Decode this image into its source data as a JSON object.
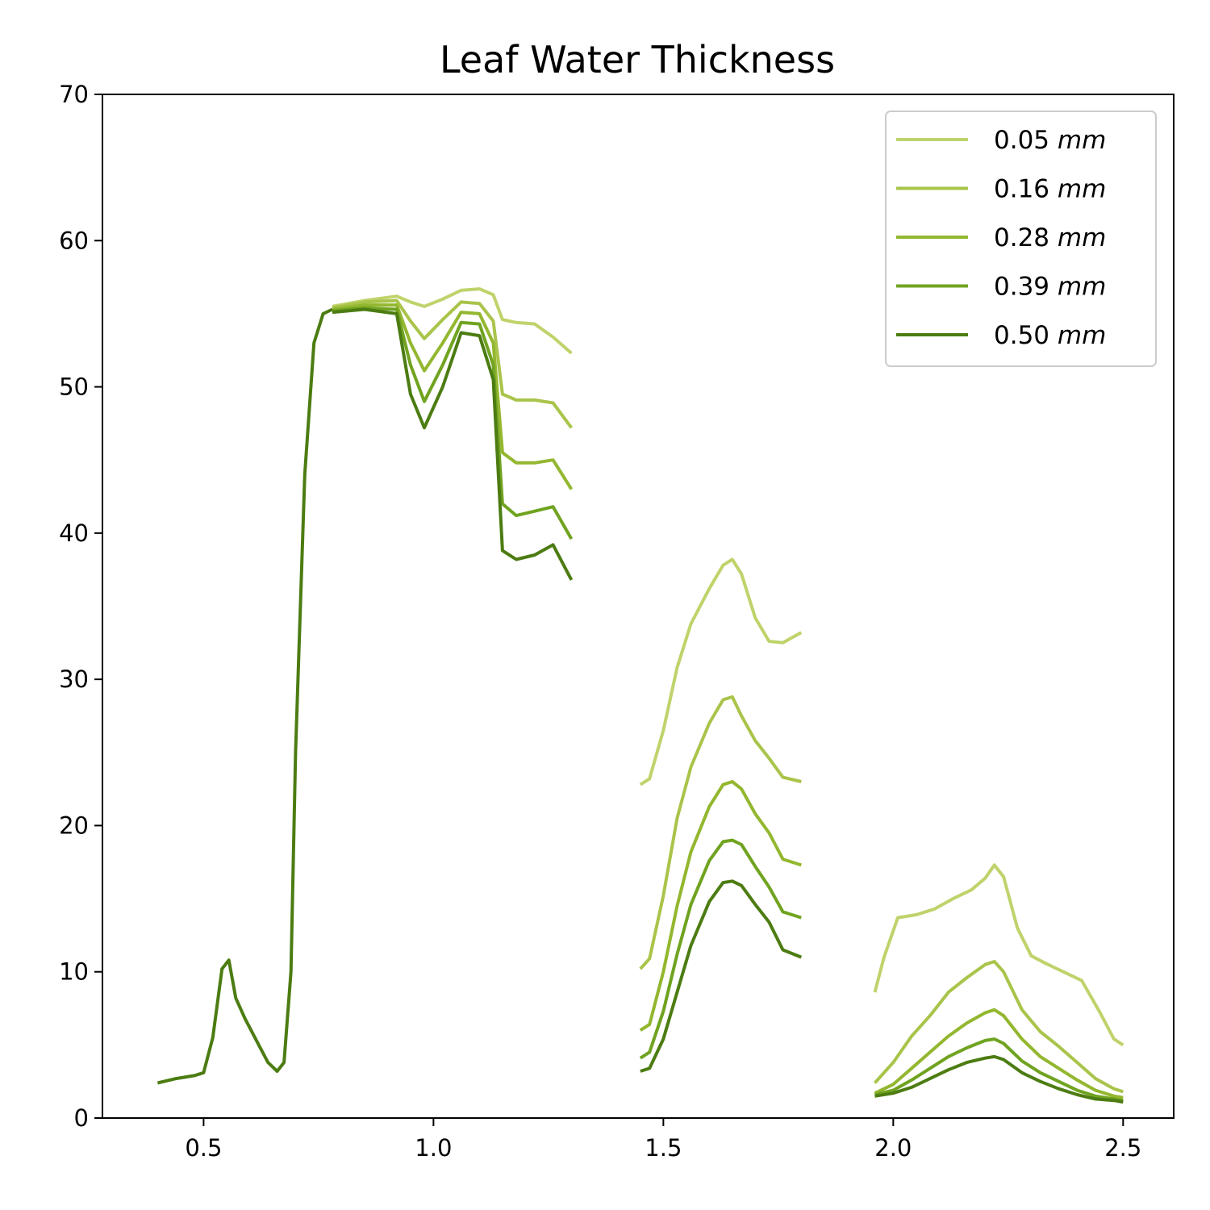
{
  "chart_data": {
    "type": "line",
    "title": "Leaf Water Thickness",
    "xlabel": "",
    "ylabel": "",
    "xlim": [
      0.28,
      2.61
    ],
    "ylim": [
      0,
      70
    ],
    "x_ticks": [
      0.5,
      1.0,
      1.5,
      2.0,
      2.5
    ],
    "x_tick_labels": [
      "0.5",
      "1.0",
      "1.5",
      "2.0",
      "2.5"
    ],
    "y_ticks": [
      0,
      10,
      20,
      30,
      40,
      50,
      60,
      70
    ],
    "y_tick_labels": [
      "0",
      "10",
      "20",
      "30",
      "40",
      "50",
      "60",
      "70"
    ],
    "grid": false,
    "legend_position": "top-right",
    "shared_segment": {
      "x": [
        0.4,
        0.44,
        0.48,
        0.5,
        0.52,
        0.54,
        0.555,
        0.57,
        0.59,
        0.62,
        0.64,
        0.66,
        0.675,
        0.69,
        0.7,
        0.72,
        0.74,
        0.76,
        0.78
      ],
      "y": [
        2.4,
        2.7,
        2.9,
        3.1,
        5.5,
        10.2,
        10.8,
        8.2,
        6.8,
        5.0,
        3.8,
        3.2,
        3.8,
        10,
        25,
        44,
        53,
        55,
        55.3
      ]
    },
    "series": [
      {
        "name": "0.05",
        "unit": "mm",
        "color": "#bfd36b",
        "segments": [
          {
            "x": [
              0.78,
              0.85,
              0.92,
              0.95,
              0.98,
              1.02,
              1.06,
              1.1,
              1.13,
              1.15,
              1.18,
              1.22,
              1.26,
              1.3
            ],
            "y": [
              55.5,
              55.9,
              56.2,
              55.8,
              55.5,
              56.0,
              56.6,
              56.7,
              56.3,
              54.6,
              54.4,
              54.3,
              53.4,
              52.3
            ]
          },
          {
            "x": [
              1.45,
              1.47,
              1.5,
              1.53,
              1.56,
              1.6,
              1.63,
              1.65,
              1.67,
              1.7,
              1.73,
              1.76,
              1.8
            ],
            "y": [
              22.8,
              23.2,
              26.5,
              30.8,
              33.8,
              36.2,
              37.8,
              38.2,
              37.2,
              34.2,
              32.6,
              32.5,
              33.2
            ]
          },
          {
            "x": [
              1.96,
              1.98,
              2.01,
              2.05,
              2.09,
              2.13,
              2.17,
              2.2,
              2.22,
              2.24,
              2.27,
              2.3,
              2.33,
              2.37,
              2.41,
              2.45,
              2.48,
              2.5
            ],
            "y": [
              8.6,
              11.0,
              13.7,
              13.9,
              14.3,
              15.0,
              15.6,
              16.4,
              17.3,
              16.5,
              13.0,
              11.1,
              10.6,
              10.0,
              9.4,
              7.2,
              5.4,
              5.0
            ]
          }
        ]
      },
      {
        "name": "0.16",
        "unit": "mm",
        "color": "#a9c44a",
        "segments": [
          {
            "x": [
              0.78,
              0.85,
              0.92,
              0.95,
              0.98,
              1.02,
              1.06,
              1.1,
              1.13,
              1.15,
              1.18,
              1.22,
              1.26,
              1.3
            ],
            "y": [
              55.4,
              55.8,
              55.9,
              54.5,
              53.3,
              54.6,
              55.8,
              55.7,
              54.5,
              49.5,
              49.1,
              49.1,
              48.9,
              47.2
            ]
          },
          {
            "x": [
              1.45,
              1.47,
              1.5,
              1.53,
              1.56,
              1.6,
              1.63,
              1.65,
              1.67,
              1.7,
              1.73,
              1.76,
              1.8
            ],
            "y": [
              10.2,
              10.9,
              15.2,
              20.5,
              24.0,
              27.0,
              28.6,
              28.8,
              27.5,
              25.8,
              24.6,
              23.3,
              23.0
            ]
          },
          {
            "x": [
              1.96,
              2.0,
              2.04,
              2.08,
              2.12,
              2.16,
              2.2,
              2.22,
              2.24,
              2.28,
              2.32,
              2.36,
              2.4,
              2.44,
              2.48,
              2.5
            ],
            "y": [
              2.4,
              3.8,
              5.6,
              7.0,
              8.6,
              9.6,
              10.5,
              10.7,
              10.0,
              7.4,
              5.9,
              4.9,
              3.8,
              2.7,
              2.0,
              1.8
            ]
          }
        ]
      },
      {
        "name": "0.28",
        "unit": "mm",
        "color": "#93b72f",
        "segments": [
          {
            "x": [
              0.78,
              0.85,
              0.92,
              0.95,
              0.98,
              1.02,
              1.06,
              1.1,
              1.13,
              1.15,
              1.18,
              1.22,
              1.26,
              1.3
            ],
            "y": [
              55.3,
              55.6,
              55.6,
              53.0,
              51.1,
              53.0,
              55.1,
              55.0,
              53.0,
              45.5,
              44.8,
              44.8,
              45.0,
              43.0
            ]
          },
          {
            "x": [
              1.45,
              1.47,
              1.5,
              1.53,
              1.56,
              1.6,
              1.63,
              1.65,
              1.67,
              1.7,
              1.73,
              1.76,
              1.8
            ],
            "y": [
              6.0,
              6.4,
              10.0,
              14.5,
              18.2,
              21.3,
              22.8,
              23.0,
              22.5,
              20.8,
              19.5,
              17.7,
              17.3
            ]
          },
          {
            "x": [
              1.96,
              2.0,
              2.04,
              2.08,
              2.12,
              2.16,
              2.2,
              2.22,
              2.24,
              2.28,
              2.32,
              2.36,
              2.4,
              2.44,
              2.48,
              2.5
            ],
            "y": [
              1.7,
              2.3,
              3.4,
              4.5,
              5.6,
              6.5,
              7.2,
              7.4,
              7.0,
              5.4,
              4.2,
              3.4,
              2.6,
              1.9,
              1.5,
              1.4
            ]
          }
        ]
      },
      {
        "name": "0.39",
        "unit": "mm",
        "color": "#70a320",
        "segments": [
          {
            "x": [
              0.78,
              0.85,
              0.92,
              0.95,
              0.98,
              1.02,
              1.06,
              1.1,
              1.13,
              1.15,
              1.18,
              1.22,
              1.26,
              1.3
            ],
            "y": [
              55.2,
              55.4,
              55.3,
              51.5,
              49.0,
              51.5,
              54.4,
              54.3,
              51.5,
              42.0,
              41.2,
              41.5,
              41.8,
              39.6
            ]
          },
          {
            "x": [
              1.45,
              1.47,
              1.5,
              1.53,
              1.56,
              1.6,
              1.63,
              1.65,
              1.67,
              1.7,
              1.73,
              1.76,
              1.8
            ],
            "y": [
              4.1,
              4.5,
              7.3,
              11.2,
              14.6,
              17.6,
              18.9,
              19.0,
              18.7,
              17.2,
              15.8,
              14.1,
              13.7
            ]
          },
          {
            "x": [
              1.96,
              2.0,
              2.04,
              2.08,
              2.12,
              2.16,
              2.2,
              2.22,
              2.24,
              2.28,
              2.32,
              2.36,
              2.4,
              2.44,
              2.48,
              2.5
            ],
            "y": [
              1.6,
              1.9,
              2.6,
              3.4,
              4.2,
              4.8,
              5.3,
              5.4,
              5.1,
              3.9,
              3.1,
              2.5,
              1.9,
              1.5,
              1.3,
              1.2
            ]
          }
        ]
      },
      {
        "name": "0.50",
        "unit": "mm",
        "color": "#4c7c12",
        "segments": [
          {
            "x": [
              0.78,
              0.85,
              0.92,
              0.95,
              0.98,
              1.02,
              1.06,
              1.1,
              1.13,
              1.15,
              1.18,
              1.22,
              1.26,
              1.3
            ],
            "y": [
              55.1,
              55.3,
              55.0,
              49.5,
              47.2,
              50.0,
              53.7,
              53.5,
              50.5,
              38.8,
              38.2,
              38.5,
              39.2,
              36.8
            ]
          },
          {
            "x": [
              1.45,
              1.47,
              1.5,
              1.53,
              1.56,
              1.6,
              1.63,
              1.65,
              1.67,
              1.7,
              1.73,
              1.76,
              1.8
            ],
            "y": [
              3.2,
              3.4,
              5.4,
              8.6,
              11.8,
              14.8,
              16.1,
              16.2,
              15.9,
              14.6,
              13.4,
              11.5,
              11.0
            ]
          },
          {
            "x": [
              1.96,
              2.0,
              2.04,
              2.08,
              2.12,
              2.16,
              2.2,
              2.22,
              2.24,
              2.28,
              2.32,
              2.36,
              2.4,
              2.44,
              2.48,
              2.5
            ],
            "y": [
              1.5,
              1.7,
              2.1,
              2.7,
              3.3,
              3.8,
              4.1,
              4.2,
              4.0,
              3.1,
              2.5,
              2.0,
              1.6,
              1.3,
              1.2,
              1.1
            ]
          }
        ]
      }
    ]
  }
}
